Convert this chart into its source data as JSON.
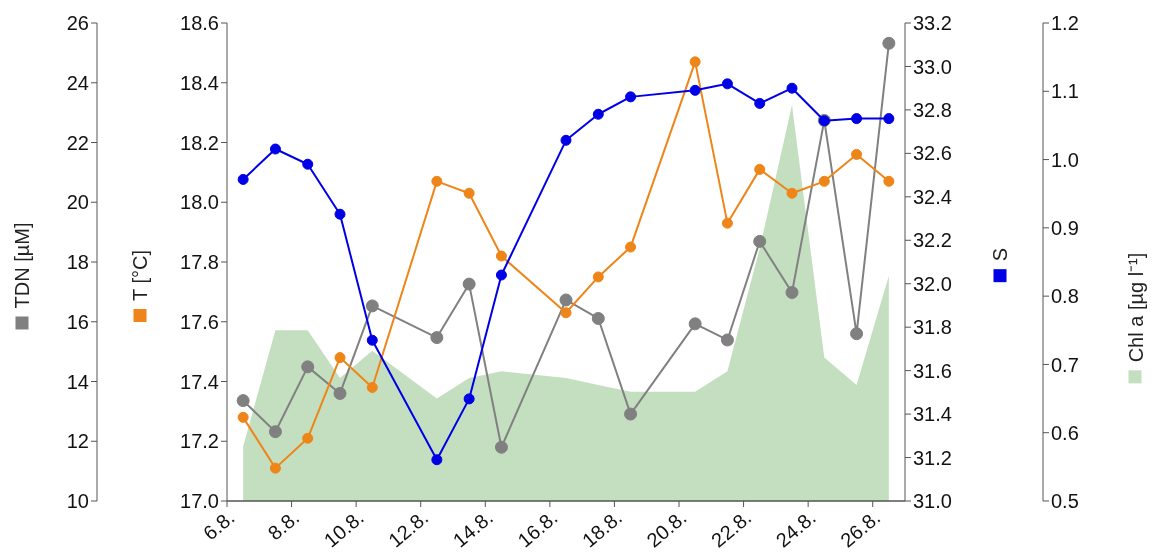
{
  "chart_data": [
    {
      "type": "line",
      "x": [
        "--08-06T12:00",
        "--08-07T12:00",
        "--08-08T12:00",
        "--08-09T12:00",
        "--08-10T12:00",
        "--08-12T12:00",
        "--08-13T12:00",
        "--08-14T12:00",
        "--08-16T12:00",
        "--08-17T12:00",
        "--08-18T12:00",
        "--08-20T12:00",
        "--08-21T12:00",
        "--08-22T12:00",
        "--08-23T12:00",
        "--08-24T12:00",
        "--08-25T12:00",
        "--08-26T12:00"
      ],
      "xlim": [
        "--08-06",
        "--08-27"
      ],
      "xticks": [
        {
          "value": "--08-06",
          "label": "6.8."
        },
        {
          "value": "--08-08",
          "label": "8.8."
        },
        {
          "value": "--08-10",
          "label": "10.8."
        },
        {
          "value": "--08-12",
          "label": "12.8."
        },
        {
          "value": "--08-14",
          "label": "14.8."
        },
        {
          "value": "--08-16",
          "label": "16.8."
        },
        {
          "value": "--08-18",
          "label": "18.8."
        },
        {
          "value": "--08-20",
          "label": "20.8."
        },
        {
          "value": "--08-22",
          "label": "22.8."
        },
        {
          "value": "--08-24",
          "label": "24.8."
        },
        {
          "value": "--08-26",
          "label": "26.8."
        }
      ],
      "ylabel": "TDN [µM]",
      "ylim": [
        10,
        26
      ],
      "yticks": [
        10,
        12,
        14,
        16,
        18,
        20,
        22,
        24,
        26
      ],
      "y2label": "Chl a [µg l⁻¹]",
      "y2lim": [
        0.5,
        1.2
      ],
      "y2ticks": [
        0.5,
        0.6,
        0.7,
        0.8,
        0.9,
        {
          "value": 1,
          "label": "1.0"
        },
        1.1,
        1.2
      ],
      "marker": "circle",
      "line_style": "solid",
      "series": [
        {
          "type": "area",
          "axis": "y2",
          "marker": "none",
          "color": "#c4dfc0",
          "values": [
            0.58,
            0.75,
            0.75,
            0.68,
            0.72,
            0.65,
            0.68,
            0.69,
            0.68,
            0.67,
            0.66,
            0.66,
            0.69,
            0.87,
            1.08,
            0.71,
            0.67,
            0.83
          ]
        },
        {
          "color": "#808080",
          "values": [
            13.36,
            12.32,
            14.49,
            13.6,
            16.53,
            15.47,
            17.26,
            11.8,
            16.73,
            16.11,
            12.91,
            15.93,
            15.39,
            18.69,
            16.98,
            22.74,
            15.6,
            25.32
          ]
        }
      ]
    },
    {
      "type": "line",
      "x": [
        "--08-06T12:00",
        "--08-07T12:00",
        "--08-08T12:00",
        "--08-09T12:00",
        "--08-10T12:00",
        "--08-12T12:00",
        "--08-13T12:00",
        "--08-14T12:00",
        "--08-16T12:00",
        "--08-17T12:00",
        "--08-18T12:00",
        "--08-20T12:00",
        "--08-21T12:00",
        "--08-22T12:00",
        "--08-23T12:00",
        "--08-24T12:00",
        "--08-25T12:00",
        "--08-26T12:00"
      ],
      "xlim": [
        "--08-06",
        "--08-27"
      ],
      "tick_labels": "y",
      "ylabel": "T [°C]",
      "ylim": [
        17,
        18.6
      ],
      "yticks": [
        {
          "value": 17,
          "label": "17.0"
        },
        17.2,
        17.4,
        17.6,
        17.8,
        {
          "value": 18,
          "label": "18.0"
        },
        18.2,
        18.4,
        18.6
      ],
      "y2label": "S",
      "y2lim": [
        31,
        33.2
      ],
      "y2ticks": [
        {
          "value": 31,
          "label": "31.0"
        },
        31.2,
        31.4,
        31.6,
        31.8,
        {
          "value": 32,
          "label": "32.0"
        },
        32.2,
        32.4,
        32.6,
        32.8,
        {
          "value": 33,
          "label": "33.0"
        },
        33.2
      ],
      "marker": "circle",
      "line_style": "solid",
      "series": [
        {
          "color": "#ee8519",
          "values": [
            17.28,
            17.11,
            17.21,
            17.48,
            17.38,
            18.07,
            18.03,
            17.82,
            17.63,
            17.75,
            17.85,
            18.47,
            17.93,
            18.11,
            18.03,
            18.07,
            18.16,
            18.07
          ]
        },
        {
          "axis": "y2",
          "color": "#0000e6",
          "values": [
            32.48,
            32.62,
            32.55,
            32.32,
            31.74,
            31.19,
            31.47,
            32.04,
            32.66,
            32.78,
            32.86,
            32.89,
            32.92,
            32.83,
            32.9,
            32.75,
            32.76,
            32.76
          ]
        }
      ]
    }
  ]
}
